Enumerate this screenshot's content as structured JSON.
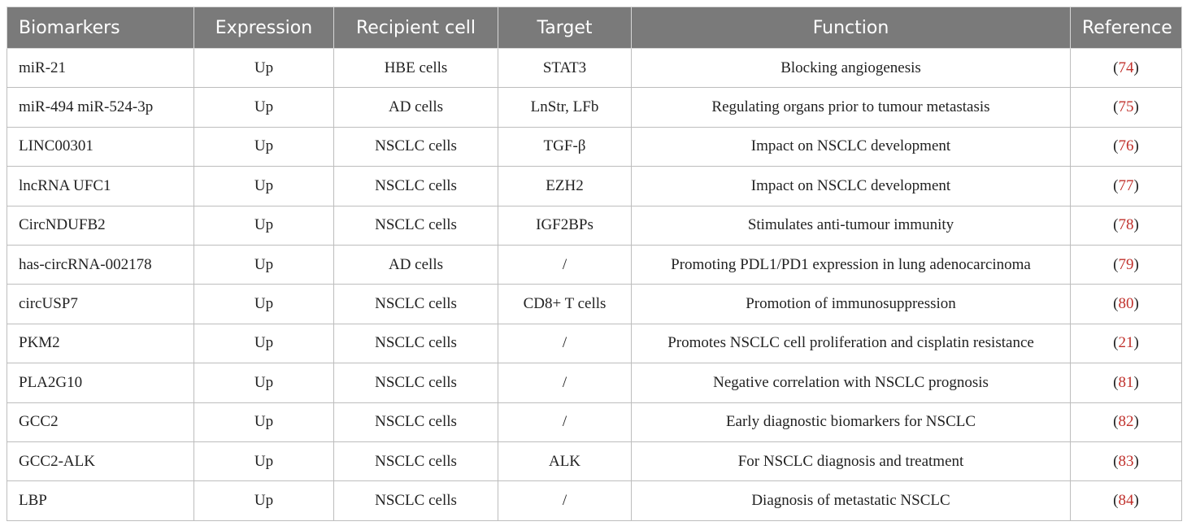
{
  "table": {
    "headers": [
      "Biomarkers",
      "Expression",
      "Recipient cell",
      "Target",
      "Function",
      "Reference"
    ],
    "rows": [
      {
        "biomarker": "miR-21",
        "expression": "Up",
        "recipient": "HBE cells",
        "target": "STAT3",
        "function": "Blocking angiogenesis",
        "ref": "74"
      },
      {
        "biomarker": "miR-494 miR-524-3p",
        "expression": "Up",
        "recipient": "AD cells",
        "target": "LnStr, LFb",
        "function": "Regulating organs prior to tumour metastasis",
        "ref": "75"
      },
      {
        "biomarker": "LINC00301",
        "expression": "Up",
        "recipient": "NSCLC cells",
        "target": "TGF-β",
        "function": "Impact on NSCLC development",
        "ref": "76"
      },
      {
        "biomarker": "lncRNA UFC1",
        "expression": "Up",
        "recipient": "NSCLC cells",
        "target": "EZH2",
        "function": "Impact on NSCLC development",
        "ref": "77"
      },
      {
        "biomarker": "CircNDUFB2",
        "expression": "Up",
        "recipient": "NSCLC cells",
        "target": "IGF2BPs",
        "function": "Stimulates anti-tumour immunity",
        "ref": "78"
      },
      {
        "biomarker": "has-circRNA-002178",
        "expression": "Up",
        "recipient": "AD cells",
        "target": "/",
        "function": "Promoting PDL1/PD1 expression in lung adenocarcinoma",
        "ref": "79"
      },
      {
        "biomarker": "circUSP7",
        "expression": "Up",
        "recipient": "NSCLC cells",
        "target": "CD8+ T cells",
        "function": "Promotion of immunosuppression",
        "ref": "80"
      },
      {
        "biomarker": "PKM2",
        "expression": "Up",
        "recipient": "NSCLC cells",
        "target": "/",
        "function": "Promotes NSCLC cell proliferation and cisplatin resistance",
        "ref": "21"
      },
      {
        "biomarker": "PLA2G10",
        "expression": "Up",
        "recipient": "NSCLC cells",
        "target": "/",
        "function": "Negative correlation with NSCLC prognosis",
        "ref": "81"
      },
      {
        "biomarker": "GCC2",
        "expression": "Up",
        "recipient": "NSCLC cells",
        "target": "/",
        "function": "Early diagnostic biomarkers for NSCLC",
        "ref": "82"
      },
      {
        "biomarker": "GCC2-ALK",
        "expression": "Up",
        "recipient": "NSCLC cells",
        "target": "ALK",
        "function": "For NSCLC diagnosis and treatment",
        "ref": "83"
      },
      {
        "biomarker": "LBP",
        "expression": "Up",
        "recipient": "NSCLC cells",
        "target": "/",
        "function": "Diagnosis of metastatic NSCLC",
        "ref": "84"
      }
    ]
  },
  "colors": {
    "header_bg": "#7a7a7a",
    "header_text": "#ffffff",
    "reference_link": "#c0302b",
    "grid": "#bdbdbd"
  }
}
